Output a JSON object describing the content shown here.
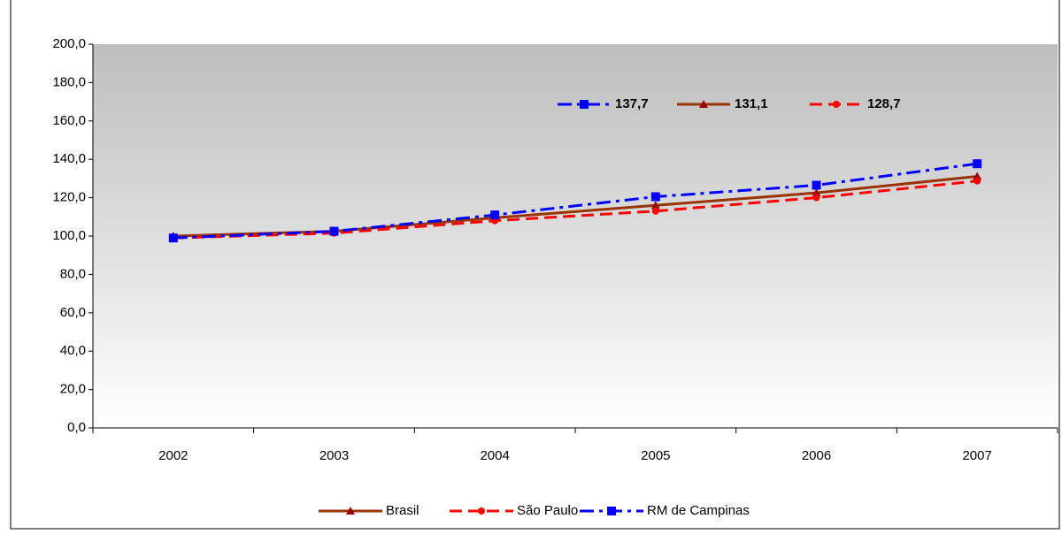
{
  "chart_data": {
    "type": "line",
    "categories": [
      "2002",
      "2003",
      "2004",
      "2005",
      "2006",
      "2007"
    ],
    "series": [
      {
        "name": "Brasil",
        "color": "#993300",
        "values": [
          100,
          102.5,
          109.5,
          116,
          122.5,
          131.1
        ],
        "value_labels": [
          null,
          null,
          null,
          null,
          null,
          "131,1"
        ]
      },
      {
        "name": "São Paulo",
        "color": "#ff0000",
        "values": [
          99,
          101.5,
          108,
          113,
          120,
          128.7
        ],
        "value_labels": [
          null,
          null,
          null,
          null,
          null,
          "128,7"
        ]
      },
      {
        "name": "RM de Campinas",
        "color": "#0000ff",
        "values": [
          99,
          102.5,
          111,
          120.5,
          126.5,
          137.7
        ],
        "value_labels": [
          null,
          null,
          null,
          null,
          null,
          "137,7"
        ]
      }
    ],
    "ylim": [
      0,
      200
    ],
    "yticks": [
      {
        "value": 0,
        "label": "0,0"
      },
      {
        "value": 20,
        "label": "20,0"
      },
      {
        "value": 40,
        "label": "40,0"
      },
      {
        "value": 60,
        "label": "60,0"
      },
      {
        "value": 80,
        "label": "80,0"
      },
      {
        "value": 100,
        "label": "100,0"
      },
      {
        "value": 120,
        "label": "120,0"
      },
      {
        "value": 140,
        "label": "140,0"
      },
      {
        "value": 160,
        "label": "160,0"
      },
      {
        "value": 180,
        "label": "180,0"
      },
      {
        "value": 200,
        "label": "200,0"
      }
    ],
    "legend": "bottom"
  }
}
